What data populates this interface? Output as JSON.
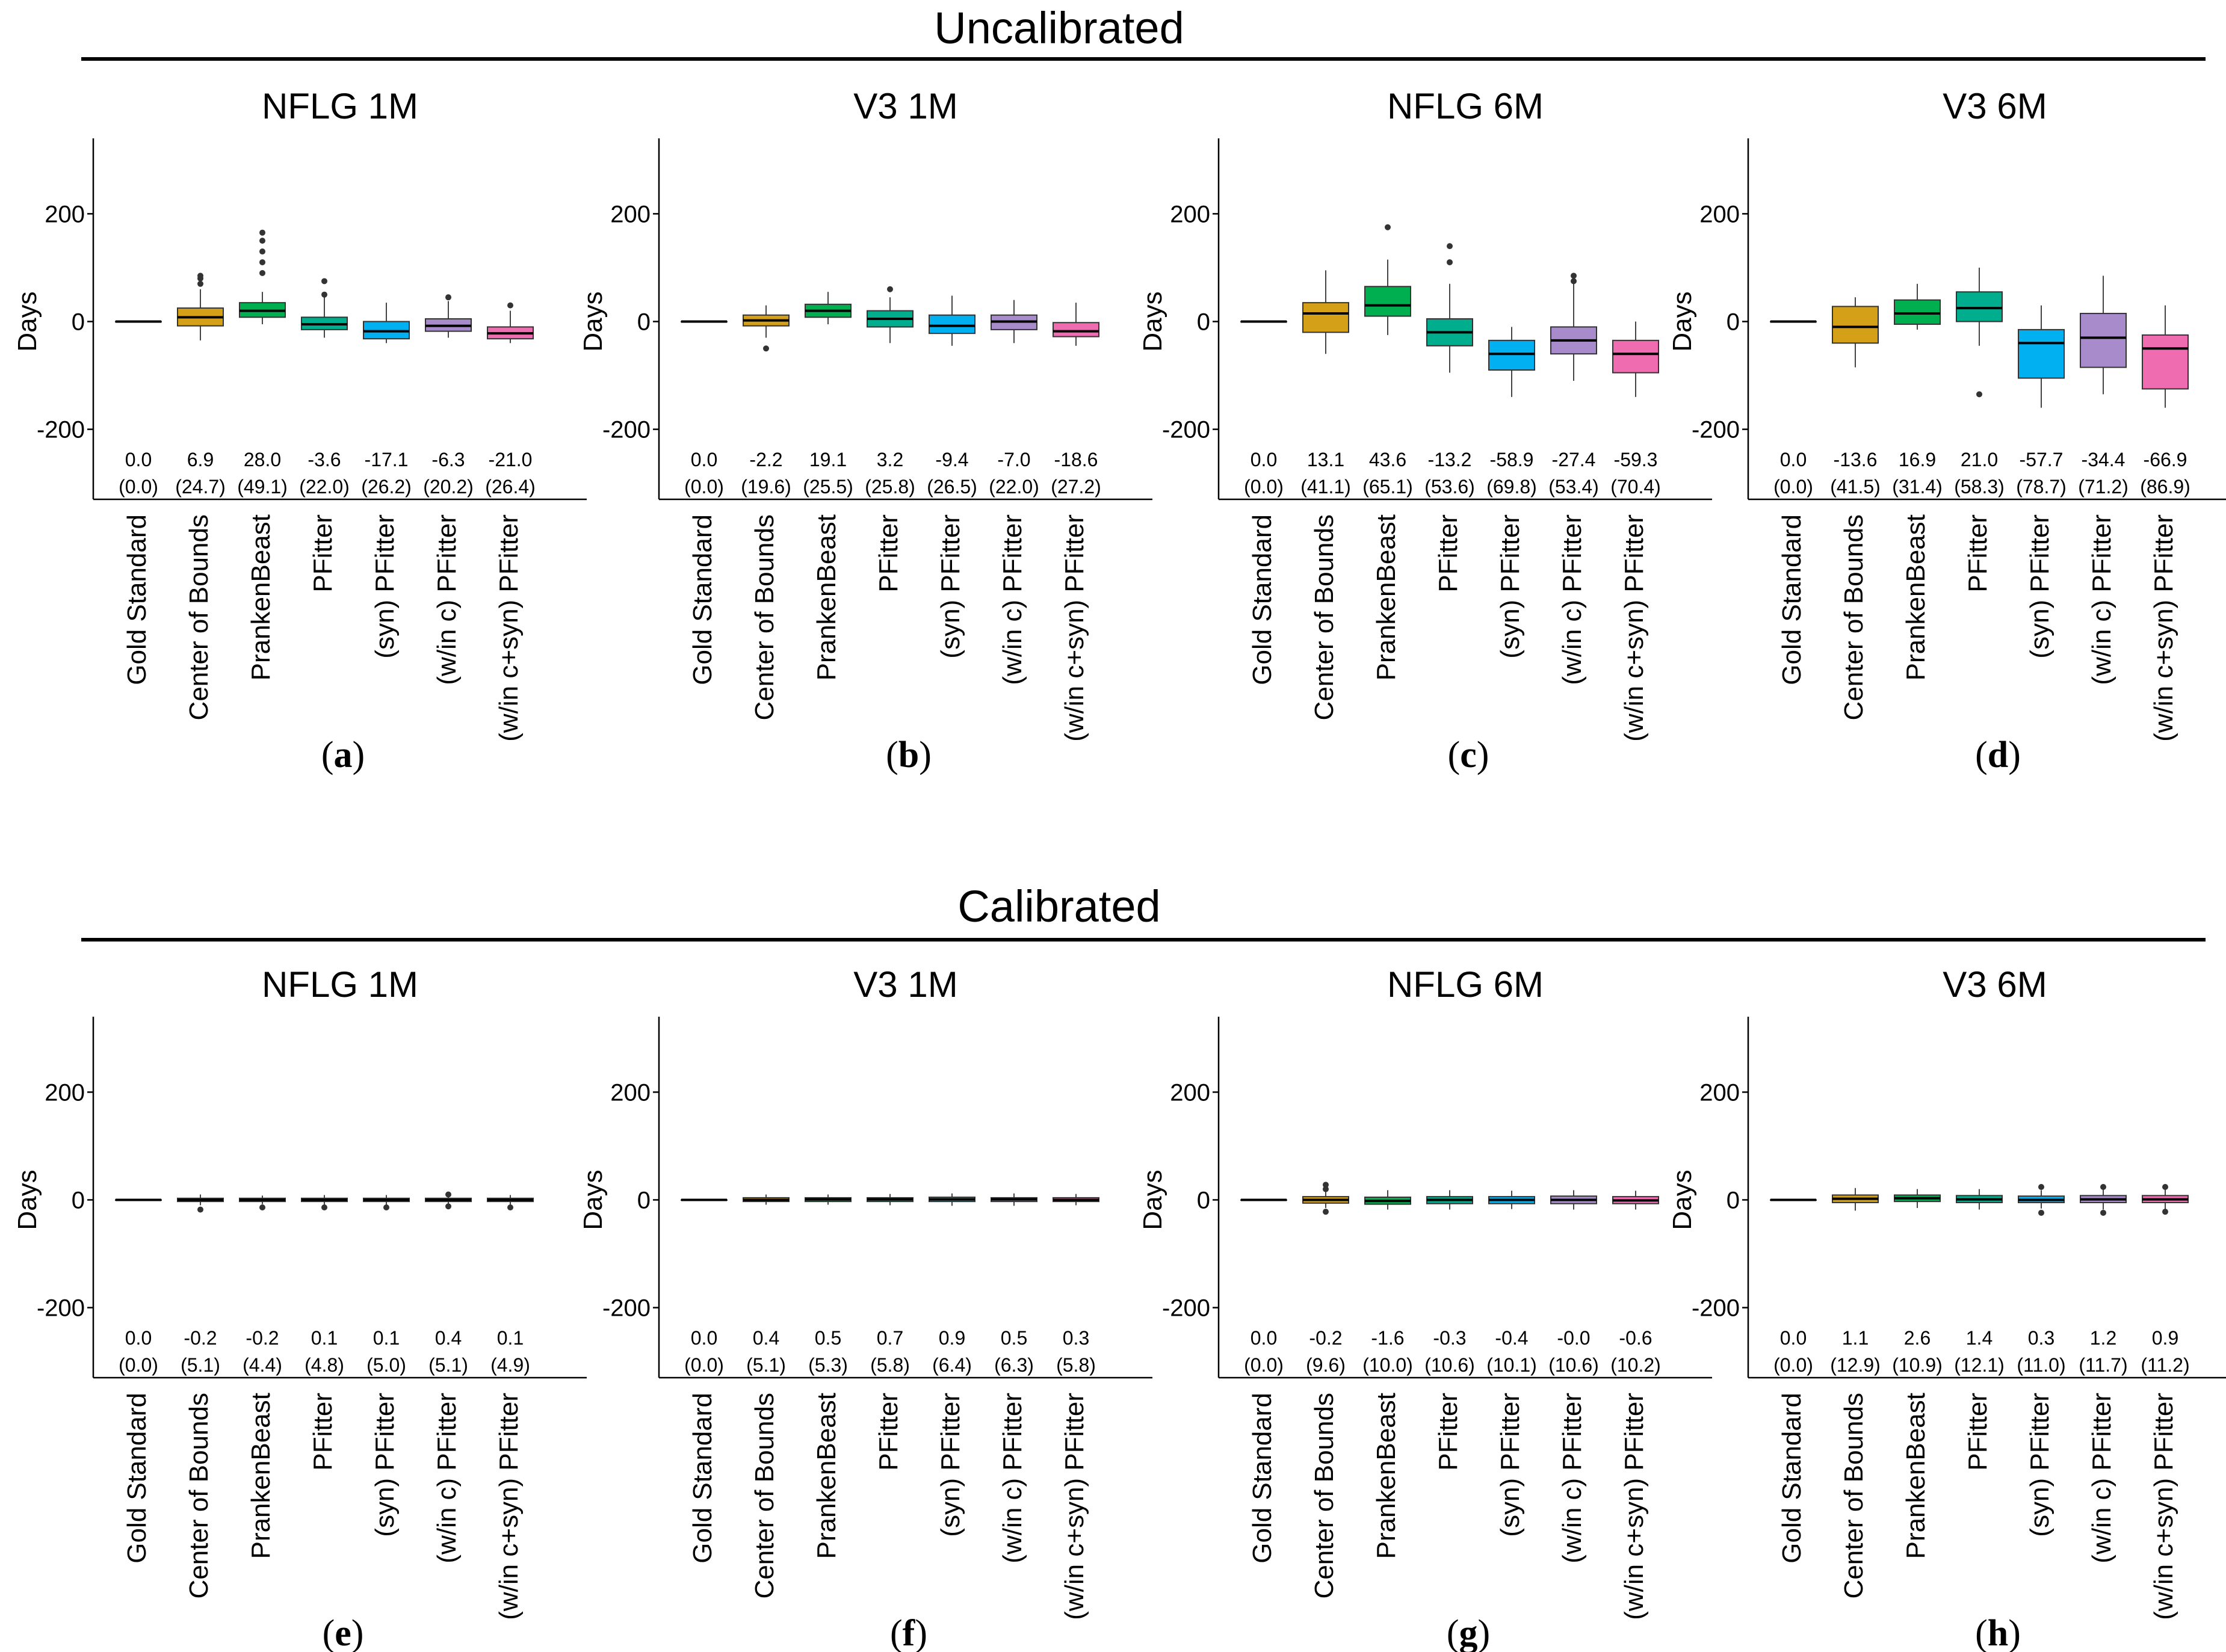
{
  "sections": [
    {
      "title": "Uncalibrated"
    },
    {
      "title": "Calibrated"
    }
  ],
  "colors": [
    "#ffffff",
    "#d4a017",
    "#00b050",
    "#00ad8c",
    "#00b0f0",
    "#a78bcb",
    "#f06cb0"
  ],
  "chart_data": [
    {
      "type": "box",
      "title": "NFLG 1M",
      "letter": "a",
      "section": "Uncalibrated",
      "ylabel": "Days",
      "ylim": [
        -330,
        340
      ],
      "yticks": [
        200,
        0,
        -200
      ],
      "categories": [
        "Gold Standard",
        "Center of Bounds",
        "PrankenBeast",
        "PFitter",
        "(syn) PFitter",
        "(w/in c) PFitter",
        "(w/in c+syn) PFitter"
      ],
      "means": [
        "0.0",
        "6.9",
        "28.0",
        "-3.6",
        "-17.1",
        "-6.3",
        "-21.0"
      ],
      "sds": [
        "(0.0)",
        "(24.7)",
        "(49.1)",
        "(22.0)",
        "(26.2)",
        "(20.2)",
        "(26.4)"
      ],
      "boxes": [
        [
          0,
          0,
          0,
          0,
          0
        ],
        [
          -35,
          -8,
          8,
          25,
          60
        ],
        [
          -5,
          8,
          20,
          35,
          55
        ],
        [
          -30,
          -15,
          -5,
          8,
          45
        ],
        [
          -40,
          -32,
          -18,
          0,
          35
        ],
        [
          -30,
          -18,
          -8,
          5,
          38
        ],
        [
          -40,
          -32,
          -22,
          -10,
          20
        ]
      ],
      "outliers": [
        [],
        [
          70,
          80,
          85
        ],
        [
          90,
          110,
          130,
          150,
          165
        ],
        [
          50,
          75
        ],
        [],
        [
          45
        ],
        [
          30
        ]
      ]
    },
    {
      "type": "box",
      "title": "V3 1M",
      "letter": "b",
      "section": "Uncalibrated",
      "ylabel": "Days",
      "ylim": [
        -330,
        340
      ],
      "yticks": [
        200,
        0,
        -200
      ],
      "categories": [
        "Gold Standard",
        "Center of Bounds",
        "PrankenBeast",
        "PFitter",
        "(syn) PFitter",
        "(w/in c) PFitter",
        "(w/in c+syn) PFitter"
      ],
      "means": [
        "0.0",
        "-2.2",
        "19.1",
        "3.2",
        "-9.4",
        "-7.0",
        "-18.6"
      ],
      "sds": [
        "(0.0)",
        "(19.6)",
        "(25.5)",
        "(25.8)",
        "(26.5)",
        "(22.0)",
        "(27.2)"
      ],
      "boxes": [
        [
          0,
          0,
          0,
          0,
          0
        ],
        [
          -30,
          -8,
          2,
          12,
          30
        ],
        [
          -5,
          8,
          20,
          32,
          55
        ],
        [
          -40,
          -10,
          5,
          20,
          45
        ],
        [
          -45,
          -22,
          -8,
          12,
          48
        ],
        [
          -40,
          -15,
          0,
          12,
          40
        ],
        [
          -45,
          -28,
          -18,
          -2,
          35
        ]
      ],
      "outliers": [
        [],
        [
          -50
        ],
        [],
        [
          60
        ],
        [],
        [],
        []
      ]
    },
    {
      "type": "box",
      "title": "NFLG 6M",
      "letter": "c",
      "section": "Uncalibrated",
      "ylabel": "Days",
      "ylim": [
        -330,
        340
      ],
      "yticks": [
        200,
        0,
        -200
      ],
      "categories": [
        "Gold Standard",
        "Center of Bounds",
        "PrankenBeast",
        "PFitter",
        "(syn) PFitter",
        "(w/in c) PFitter",
        "(w/in c+syn) PFitter"
      ],
      "means": [
        "0.0",
        "13.1",
        "43.6",
        "-13.2",
        "-58.9",
        "-27.4",
        "-59.3"
      ],
      "sds": [
        "(0.0)",
        "(41.1)",
        "(65.1)",
        "(53.6)",
        "(69.8)",
        "(53.4)",
        "(70.4)"
      ],
      "boxes": [
        [
          0,
          0,
          0,
          0,
          0
        ],
        [
          -60,
          -20,
          15,
          35,
          95
        ],
        [
          -25,
          10,
          30,
          65,
          115
        ],
        [
          -95,
          -45,
          -20,
          5,
          70
        ],
        [
          -140,
          -90,
          -60,
          -35,
          -10
        ],
        [
          -110,
          -60,
          -35,
          -10,
          70
        ],
        [
          -140,
          -95,
          -60,
          -35,
          0
        ]
      ],
      "outliers": [
        [],
        [],
        [
          175
        ],
        [
          110,
          140
        ],
        [],
        [
          75,
          85
        ],
        []
      ]
    },
    {
      "type": "box",
      "title": "V3 6M",
      "letter": "d",
      "section": "Uncalibrated",
      "ylabel": "Days",
      "ylim": [
        -330,
        340
      ],
      "yticks": [
        200,
        0,
        -200
      ],
      "categories": [
        "Gold Standard",
        "Center of Bounds",
        "PrankenBeast",
        "PFitter",
        "(syn) PFitter",
        "(w/in c) PFitter",
        "(w/in c+syn) PFitter"
      ],
      "means": [
        "0.0",
        "-13.6",
        "16.9",
        "21.0",
        "-57.7",
        "-34.4",
        "-66.9"
      ],
      "sds": [
        "(0.0)",
        "(41.5)",
        "(31.4)",
        "(58.3)",
        "(78.7)",
        "(71.2)",
        "(86.9)"
      ],
      "boxes": [
        [
          0,
          0,
          0,
          0,
          0
        ],
        [
          -85,
          -40,
          -10,
          28,
          45
        ],
        [
          -15,
          -5,
          15,
          40,
          70
        ],
        [
          -45,
          0,
          25,
          55,
          100
        ],
        [
          -160,
          -105,
          -40,
          -15,
          30
        ],
        [
          -135,
          -85,
          -30,
          15,
          85
        ],
        [
          -160,
          -125,
          -50,
          -25,
          30
        ]
      ],
      "outliers": [
        [],
        [],
        [],
        [
          -135
        ],
        [],
        [],
        []
      ]
    },
    {
      "type": "box",
      "title": "NFLG 1M",
      "letter": "e",
      "section": "Calibrated",
      "ylabel": "Days",
      "ylim": [
        -330,
        340
      ],
      "yticks": [
        200,
        0,
        -200
      ],
      "categories": [
        "Gold Standard",
        "Center of Bounds",
        "PrankenBeast",
        "PFitter",
        "(syn) PFitter",
        "(w/in c) PFitter",
        "(w/in c+syn) PFitter"
      ],
      "means": [
        "0.0",
        "-0.2",
        "-0.2",
        "0.1",
        "0.1",
        "0.4",
        "0.1"
      ],
      "sds": [
        "(0.0)",
        "(5.1)",
        "(4.4)",
        "(4.8)",
        "(5.0)",
        "(5.1)",
        "(4.9)"
      ],
      "boxes": [
        [
          0,
          0,
          0,
          0,
          0
        ],
        [
          -10,
          -3,
          0,
          3,
          10
        ],
        [
          -8,
          -3,
          0,
          3,
          8
        ],
        [
          -9,
          -3,
          0,
          3,
          9
        ],
        [
          -9,
          -3,
          0,
          3,
          9
        ],
        [
          -9,
          -3,
          0,
          3,
          9
        ],
        [
          -9,
          -3,
          0,
          3,
          9
        ]
      ],
      "outliers": [
        [],
        [
          -18
        ],
        [
          -14
        ],
        [
          -14
        ],
        [
          -14
        ],
        [
          -12,
          10
        ],
        [
          -14
        ]
      ]
    },
    {
      "type": "box",
      "title": "V3 1M",
      "letter": "f",
      "section": "Calibrated",
      "ylabel": "Days",
      "ylim": [
        -330,
        340
      ],
      "yticks": [
        200,
        0,
        -200
      ],
      "categories": [
        "Gold Standard",
        "Center of Bounds",
        "PrankenBeast",
        "PFitter",
        "(syn) PFitter",
        "(w/in c) PFitter",
        "(w/in c+syn) PFitter"
      ],
      "means": [
        "0.0",
        "0.4",
        "0.5",
        "0.7",
        "0.9",
        "0.5",
        "0.3"
      ],
      "sds": [
        "(0.0)",
        "(5.1)",
        "(5.3)",
        "(5.8)",
        "(6.4)",
        "(6.3)",
        "(5.8)"
      ],
      "boxes": [
        [
          0,
          0,
          0,
          0,
          0
        ],
        [
          -9,
          -3,
          0,
          4,
          10
        ],
        [
          -9,
          -3,
          1,
          4,
          10
        ],
        [
          -10,
          -3,
          1,
          4,
          11
        ],
        [
          -11,
          -3,
          1,
          5,
          12
        ],
        [
          -11,
          -3,
          1,
          4,
          12
        ],
        [
          -10,
          -3,
          0,
          4,
          11
        ]
      ],
      "outliers": [
        [],
        [],
        [],
        [],
        [],
        [],
        []
      ]
    },
    {
      "type": "box",
      "title": "NFLG 6M",
      "letter": "g",
      "section": "Calibrated",
      "ylabel": "Days",
      "ylim": [
        -330,
        340
      ],
      "yticks": [
        200,
        0,
        -200
      ],
      "categories": [
        "Gold Standard",
        "Center of Bounds",
        "PrankenBeast",
        "PFitter",
        "(syn) PFitter",
        "(w/in c) PFitter",
        "(w/in c+syn) PFitter"
      ],
      "means": [
        "0.0",
        "-0.2",
        "-1.6",
        "-0.3",
        "-0.4",
        "-0.0",
        "-0.6"
      ],
      "sds": [
        "(0.0)",
        "(9.6)",
        "(10.0)",
        "(10.6)",
        "(10.1)",
        "(10.6)",
        "(10.2)"
      ],
      "boxes": [
        [
          0,
          0,
          0,
          0,
          0
        ],
        [
          -15,
          -6,
          0,
          6,
          16
        ],
        [
          -18,
          -8,
          -2,
          5,
          18
        ],
        [
          -18,
          -7,
          0,
          6,
          18
        ],
        [
          -17,
          -7,
          0,
          6,
          17
        ],
        [
          -18,
          -7,
          0,
          7,
          18
        ],
        [
          -18,
          -7,
          -1,
          6,
          17
        ]
      ],
      "outliers": [
        [],
        [
          -22,
          20,
          28
        ],
        [],
        [],
        [],
        [],
        []
      ]
    },
    {
      "type": "box",
      "title": "V3 6M",
      "letter": "h",
      "section": "Calibrated",
      "ylabel": "Days",
      "ylim": [
        -330,
        340
      ],
      "yticks": [
        200,
        0,
        -200
      ],
      "categories": [
        "Gold Standard",
        "Center of Bounds",
        "PrankenBeast",
        "PFitter",
        "(syn) PFitter",
        "(w/in c) PFitter",
        "(w/in c+syn) PFitter"
      ],
      "means": [
        "0.0",
        "1.1",
        "2.6",
        "1.4",
        "0.3",
        "1.2",
        "0.9"
      ],
      "sds": [
        "(0.0)",
        "(12.9)",
        "(10.9)",
        "(12.1)",
        "(11.0)",
        "(11.7)",
        "(11.2)"
      ],
      "boxes": [
        [
          0,
          0,
          0,
          0,
          0
        ],
        [
          -20,
          -5,
          2,
          9,
          22
        ],
        [
          -15,
          -3,
          3,
          9,
          20
        ],
        [
          -18,
          -5,
          1,
          8,
          20
        ],
        [
          -16,
          -5,
          0,
          7,
          18
        ],
        [
          -18,
          -5,
          1,
          8,
          20
        ],
        [
          -17,
          -5,
          1,
          8,
          19
        ]
      ],
      "outliers": [
        [],
        [],
        [],
        [],
        [
          -24,
          24
        ],
        [
          -24,
          24
        ],
        [
          -22,
          24
        ]
      ]
    }
  ]
}
